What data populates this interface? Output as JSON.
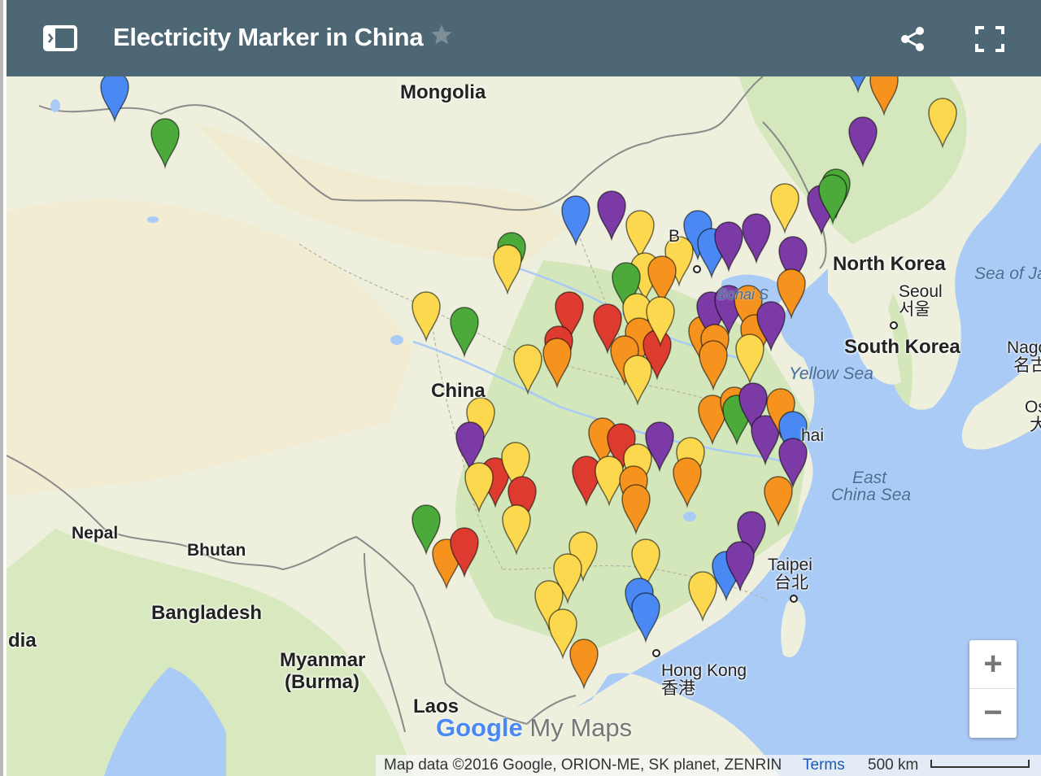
{
  "header": {
    "title": "Electricity Marker in China",
    "icons": [
      "legend-toggle-icon",
      "star-icon",
      "share-icon",
      "fullscreen-icon"
    ]
  },
  "map": {
    "labels": {
      "mongolia": "Mongolia",
      "china": "China",
      "north_korea": "North Korea",
      "south_korea": "South Korea",
      "seoul": "Seoul",
      "seoul_local": "서울",
      "nepal": "Nepal",
      "bhutan": "Bhutan",
      "bangladesh": "Bangladesh",
      "india": "dia",
      "myanmar": "Myanmar",
      "burma": "(Burma)",
      "laos": "Laos",
      "taipei": "Taipei",
      "taipei_local": "台北",
      "hong_kong": "Hong Kong",
      "hong_kong_local": "香港",
      "shanghai": "hai",
      "beijing": "B",
      "nagoya": "Nago",
      "nagoya_local": "名古",
      "osaka": "Os",
      "osaka_local": "大",
      "yellow_sea": "Yellow Sea",
      "east_china_sea_1": "East",
      "east_china_sea_2": "China Sea",
      "sea_of_japan": "Sea of Ja",
      "bohai": "Bohai S"
    },
    "marker_colors": {
      "blue": "#4a89f3",
      "green": "#4caa3b",
      "purple": "#7b3aa5",
      "yellow": "#fbd84e",
      "orange": "#f5931e",
      "red": "#de3b30"
    },
    "colors": {
      "land": "#eef0dd",
      "desert": "#f2ecd2",
      "forest": "#cfe6b2",
      "water": "#a9cbf6",
      "border": "#8a8a8a",
      "header_bg": "#4d6775"
    }
  },
  "controls": {
    "zoom_in": "+",
    "zoom_out": "−"
  },
  "attribution": {
    "text": "Map data ©2016 Google, ORION-ME, SK planet, ZENRIN",
    "terms": "Terms",
    "scale": "500 km"
  },
  "watermark": {
    "google": "Google",
    "mymaps": "My Maps"
  }
}
